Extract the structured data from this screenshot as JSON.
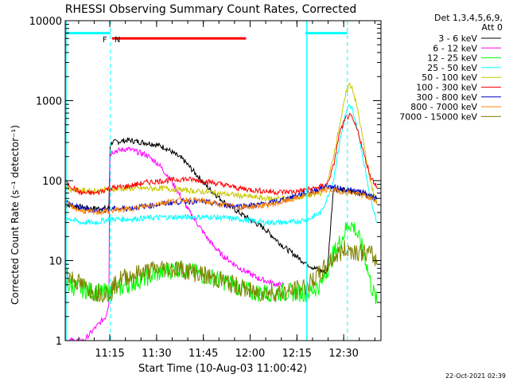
{
  "chart_data": {
    "type": "line",
    "title": "RHESSI Observing Summary Count Rates, Corrected",
    "xlabel": "Start Time (10-Aug-03 11:00:42)",
    "ylabel": "Corrected Count Rate (s⁻¹ detector⁻¹)",
    "y_scale": "log",
    "ylim": [
      1,
      10000
    ],
    "xlim_minutes": [
      0,
      40.5
    ],
    "x_ticks": [
      {
        "label": "11:15",
        "minutes": 14.3
      },
      {
        "label": "11:30",
        "minutes": 29.3
      },
      {
        "label": "11:45",
        "minutes": 44.3
      },
      {
        "label": "12:00",
        "minutes": 59.3
      },
      {
        "label": "12:15",
        "minutes": 74.3
      },
      {
        "label": "12:30",
        "minutes": 89.3
      }
    ],
    "y_ticks": [
      {
        "label": "1",
        "value": 1
      },
      {
        "label": "10",
        "value": 10
      },
      {
        "label": "100",
        "value": 100
      },
      {
        "label": "1000",
        "value": 1000
      },
      {
        "label": "10000",
        "value": 10000
      }
    ],
    "legend_header": [
      "Det 1,3,4,5,6,9,",
      "Att 0"
    ],
    "legend_placement": "top-right-outside",
    "series": [
      {
        "name": "3 - 6 keV",
        "color": "#000000",
        "x": [
          0,
          8,
          14,
          14.4,
          15,
          20,
          28,
          32,
          38,
          46,
          52,
          58,
          64,
          70,
          76,
          80,
          84,
          86,
          90,
          92,
          95,
          100
        ],
        "y": [
          50,
          45,
          45,
          280,
          300,
          320,
          290,
          260,
          180,
          80,
          50,
          35,
          25,
          15,
          10,
          8,
          7,
          80,
          75,
          72,
          70,
          60
        ]
      },
      {
        "name": "6 - 12 keV",
        "color": "#ff00ff",
        "x": [
          0,
          6,
          10,
          13,
          14,
          14.3,
          15,
          20,
          26,
          30,
          34,
          40,
          46,
          50,
          56,
          62,
          68,
          70
        ],
        "y": [
          1,
          1,
          1.5,
          2,
          3,
          200,
          230,
          250,
          210,
          160,
          100,
          40,
          18,
          12,
          8,
          6,
          5,
          5
        ]
      },
      {
        "name": "12 - 25 keV",
        "color": "#00ff00",
        "x": [
          0,
          5,
          10,
          14,
          20,
          25,
          30,
          36,
          42,
          48,
          54,
          60,
          66,
          72,
          78,
          82,
          86,
          89,
          91,
          93,
          96,
          98,
          100
        ],
        "y": [
          5,
          4.5,
          4,
          4,
          5,
          6,
          7,
          8,
          7,
          6,
          5,
          4,
          4,
          4,
          4,
          5,
          12,
          20,
          30,
          25,
          12,
          5,
          3
        ]
      },
      {
        "name": "25 - 50 keV",
        "color": "#00ffff",
        "x": [
          0,
          5,
          10,
          14,
          20,
          26,
          32,
          40,
          48,
          56,
          64,
          72,
          78,
          82,
          84,
          86,
          88,
          90,
          91,
          92,
          94,
          96,
          98,
          100
        ],
        "y": [
          35,
          30,
          30,
          33,
          33,
          34,
          35,
          35,
          35,
          33,
          30,
          30,
          33,
          40,
          60,
          100,
          300,
          700,
          850,
          800,
          400,
          150,
          60,
          30
        ]
      },
      {
        "name": "50 - 100 keV",
        "color": "#c8c800",
        "x": [
          0,
          5,
          10,
          14,
          20,
          26,
          32,
          40,
          48,
          56,
          64,
          72,
          78,
          82,
          84,
          86,
          88,
          90,
          91,
          92,
          94,
          96,
          98,
          100
        ],
        "y": [
          80,
          75,
          75,
          78,
          80,
          80,
          80,
          75,
          70,
          65,
          60,
          60,
          65,
          70,
          90,
          200,
          500,
          1200,
          1600,
          1500,
          700,
          250,
          90,
          55
        ]
      },
      {
        "name": "100 - 300 keV",
        "color": "#ff0000",
        "x": [
          0,
          5,
          10,
          14,
          20,
          26,
          32,
          38,
          44,
          50,
          56,
          62,
          68,
          74,
          80,
          84,
          86,
          88,
          90,
          91,
          92,
          94,
          96,
          98,
          100
        ],
        "y": [
          95,
          70,
          70,
          80,
          85,
          95,
          100,
          105,
          100,
          90,
          80,
          75,
          72,
          73,
          80,
          90,
          150,
          400,
          600,
          650,
          600,
          400,
          200,
          110,
          85
        ]
      },
      {
        "name": "300 - 800 keV",
        "color": "#0000c8",
        "x": [
          0,
          5,
          10,
          14,
          20,
          26,
          32,
          38,
          44,
          50,
          56,
          62,
          68,
          74,
          80,
          84,
          88,
          92,
          96,
          100
        ],
        "y": [
          55,
          45,
          42,
          44,
          45,
          48,
          52,
          55,
          55,
          50,
          48,
          50,
          55,
          65,
          75,
          85,
          80,
          75,
          70,
          60
        ]
      },
      {
        "name": "800 - 7000 keV",
        "color": "#ff8000",
        "x": [
          0,
          5,
          10,
          14,
          20,
          26,
          32,
          38,
          44,
          50,
          56,
          62,
          68,
          74,
          80,
          84,
          88,
          92,
          96,
          100
        ],
        "y": [
          52,
          42,
          40,
          42,
          44,
          48,
          54,
          58,
          56,
          50,
          46,
          48,
          52,
          60,
          70,
          78,
          74,
          70,
          65,
          55
        ]
      },
      {
        "name": "7000 - 15000 keV",
        "color": "#808000",
        "x": [
          0,
          5,
          10,
          14,
          18,
          24,
          30,
          36,
          42,
          48,
          54,
          60,
          66,
          72,
          78,
          82,
          86,
          90,
          94,
          98,
          100
        ],
        "y": [
          7,
          5,
          4,
          4,
          6,
          7,
          8,
          8,
          7,
          6,
          5,
          4,
          4,
          4,
          5,
          7,
          11,
          14,
          13,
          12,
          10
        ]
      }
    ],
    "annotations": [
      {
        "text": "F",
        "color": "#ff0000",
        "minutes": 14.0
      },
      {
        "text": "N",
        "color": "#00ffff",
        "minutes": 15.0
      }
    ],
    "flare_bar": {
      "color": "#ff0000",
      "from_minutes": 15,
      "to_minutes": 58,
      "value": 6000
    },
    "night_bars": {
      "color": "#00ffff",
      "value": 7000,
      "ranges": [
        [
          0,
          14.5
        ],
        [
          77,
          90.5
        ]
      ]
    },
    "markers": {
      "color": "#00ffff",
      "solid_minutes": [
        0,
        77.5
      ],
      "dashed_minutes": [
        14.5,
        90.5
      ]
    },
    "footer_date": "22-Oct-2021 02:39"
  }
}
